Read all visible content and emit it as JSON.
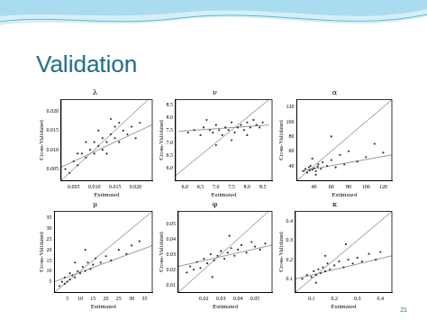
{
  "slide_title": "Validation",
  "page_number": "21",
  "chart_data": [
    {
      "type": "scatter",
      "title": "λ",
      "x_label": "Estimated",
      "y_label": "Cross-Validated",
      "grid": false,
      "xlim": [
        0.002,
        0.024
      ],
      "ylim": [
        0.002,
        0.023
      ],
      "xticks": [
        {
          "value": 0.005,
          "label": "0.005"
        },
        {
          "value": 0.01,
          "label": "0.010"
        },
        {
          "value": 0.015,
          "label": "0.015"
        },
        {
          "value": 0.02,
          "label": "0.020"
        }
      ],
      "yticks": [
        {
          "value": 0.005,
          "label": "0.005"
        },
        {
          "value": 0.01,
          "label": "0.010"
        },
        {
          "value": 0.015,
          "label": "0.015"
        },
        {
          "value": 0.02,
          "label": "0.020"
        }
      ],
      "series": [
        {
          "type": "scatter",
          "marker": "circle",
          "color": "#333333",
          "x": [
            0.003,
            0.004,
            0.005,
            0.006,
            0.007,
            0.008,
            0.009,
            0.01,
            0.01,
            0.011,
            0.012,
            0.012,
            0.013,
            0.014,
            0.015,
            0.015,
            0.016,
            0.017,
            0.018,
            0.019,
            0.02,
            0.021,
            0.008,
            0.011,
            0.006,
            0.014,
            0.016,
            0.013
          ],
          "values": [
            0.005,
            0.004,
            0.007,
            0.006,
            0.009,
            0.008,
            0.01,
            0.009,
            0.012,
            0.011,
            0.013,
            0.01,
            0.012,
            0.014,
            0.013,
            0.016,
            0.012,
            0.015,
            0.014,
            0.016,
            0.013,
            0.017,
            0.012,
            0.015,
            0.009,
            0.018,
            0.017,
            0.009
          ]
        },
        {
          "type": "line",
          "color": "#999999",
          "x": [
            0.002,
            0.023
          ],
          "values": [
            0.002,
            0.023
          ]
        },
        {
          "type": "line",
          "color": "#999999",
          "x": [
            0.002,
            0.024
          ],
          "values": [
            0.0055,
            0.0165
          ]
        }
      ]
    },
    {
      "type": "scatter",
      "title": "ν",
      "x_label": "Estimated",
      "y_label": "Cross-Validated",
      "grid": false,
      "xlim": [
        5.7,
        8.8
      ],
      "ylim": [
        5.5,
        8.7
      ],
      "xticks": [
        {
          "value": 6,
          "label": "6.0"
        },
        {
          "value": 6.5,
          "label": "6.5"
        },
        {
          "value": 7,
          "label": "7.0"
        },
        {
          "value": 7.5,
          "label": "7.5"
        },
        {
          "value": 8,
          "label": "8.0"
        },
        {
          "value": 8.5,
          "label": "8.5"
        }
      ],
      "yticks": [
        {
          "value": 6,
          "label": "6.0"
        },
        {
          "value": 6.5,
          "label": "6.5"
        },
        {
          "value": 7,
          "label": "7.0"
        },
        {
          "value": 7.5,
          "label": "7.5"
        },
        {
          "value": 8,
          "label": "8.0"
        },
        {
          "value": 8.5,
          "label": "8.5"
        }
      ],
      "series": [
        {
          "type": "scatter",
          "marker": "circle",
          "color": "#333333",
          "x": [
            6.1,
            6.3,
            6.5,
            6.6,
            6.8,
            6.9,
            7.0,
            7.1,
            7.2,
            7.3,
            7.4,
            7.5,
            7.6,
            7.7,
            7.8,
            7.9,
            8.0,
            8.1,
            8.2,
            8.3,
            8.4,
            8.5,
            7.0,
            7.5,
            8.0,
            6.7
          ],
          "values": [
            7.4,
            7.5,
            7.3,
            7.6,
            7.5,
            7.4,
            7.7,
            7.5,
            7.3,
            7.6,
            7.5,
            7.8,
            7.4,
            7.6,
            7.7,
            7.5,
            7.8,
            7.6,
            7.9,
            7.7,
            7.6,
            7.8,
            6.9,
            7.1,
            7.3,
            7.9
          ]
        },
        {
          "type": "line",
          "color": "#999999",
          "x": [
            5.7,
            8.7
          ],
          "values": [
            5.7,
            8.7
          ]
        },
        {
          "type": "line",
          "color": "#999999",
          "x": [
            5.8,
            8.7
          ],
          "values": [
            7.45,
            7.7
          ]
        }
      ]
    },
    {
      "type": "scatter",
      "title": "α",
      "x_label": "Estimated",
      "y_label": "Cross-Validated",
      "grid": false,
      "xlim": [
        20,
        130
      ],
      "ylim": [
        20,
        130
      ],
      "xticks": [
        40,
        60,
        80,
        100,
        120
      ],
      "yticks": [
        40,
        60,
        80,
        100,
        120
      ],
      "series": [
        {
          "type": "scatter",
          "marker": "circle",
          "color": "#333333",
          "x": [
            28,
            30,
            32,
            34,
            35,
            36,
            38,
            40,
            42,
            44,
            45,
            48,
            50,
            55,
            60,
            65,
            70,
            75,
            80,
            90,
            100,
            110,
            120,
            38,
            42,
            60
          ],
          "values": [
            33,
            36,
            31,
            38,
            34,
            40,
            35,
            37,
            33,
            39,
            42,
            36,
            45,
            40,
            48,
            38,
            55,
            42,
            60,
            46,
            52,
            70,
            58,
            50,
            28,
            80
          ]
        },
        {
          "type": "line",
          "color": "#999999",
          "x": [
            20,
            130
          ],
          "values": [
            20,
            130
          ]
        },
        {
          "type": "line",
          "color": "#999999",
          "x": [
            25,
            130
          ],
          "values": [
            33,
            55
          ]
        }
      ]
    },
    {
      "type": "scatter",
      "title": "μ",
      "x_label": "Estimated",
      "y_label": "Cross-Validated",
      "grid": false,
      "xlim": [
        0,
        38
      ],
      "ylim": [
        0,
        38
      ],
      "xticks": [
        5,
        10,
        15,
        20,
        25,
        30,
        35
      ],
      "yticks": [
        5,
        10,
        15,
        20,
        25,
        30,
        35
      ],
      "series": [
        {
          "type": "scatter",
          "marker": "circle",
          "color": "#333333",
          "x": [
            2,
            3,
            4,
            4,
            5,
            6,
            6,
            7,
            8,
            9,
            10,
            11,
            12,
            13,
            14,
            15,
            16,
            18,
            20,
            22,
            25,
            28,
            30,
            33,
            8,
            12
          ],
          "values": [
            3,
            5,
            4,
            7,
            5,
            6,
            9,
            8,
            7,
            10,
            9,
            12,
            10,
            14,
            11,
            13,
            16,
            14,
            17,
            15,
            20,
            18,
            22,
            24,
            14,
            20
          ]
        },
        {
          "type": "line",
          "color": "#999999",
          "x": [
            0,
            38
          ],
          "values": [
            0,
            38
          ]
        },
        {
          "type": "line",
          "color": "#999999",
          "x": [
            0,
            38
          ],
          "values": [
            5,
            22
          ]
        }
      ]
    },
    {
      "type": "scatter",
      "title": "φ",
      "x_label": "Estimated",
      "y_label": "Cross-Validated",
      "grid": false,
      "xlim": [
        0.005,
        0.06
      ],
      "ylim": [
        0.005,
        0.058
      ],
      "xticks": [
        0.02,
        0.03,
        0.04,
        0.05
      ],
      "yticks": [
        0.01,
        0.02,
        0.03,
        0.04,
        0.05
      ],
      "series": [
        {
          "type": "scatter",
          "marker": "circle",
          "color": "#333333",
          "x": [
            0.01,
            0.012,
            0.014,
            0.016,
            0.018,
            0.02,
            0.022,
            0.024,
            0.026,
            0.028,
            0.03,
            0.032,
            0.034,
            0.036,
            0.038,
            0.04,
            0.042,
            0.045,
            0.048,
            0.05,
            0.053,
            0.056,
            0.025,
            0.035
          ],
          "values": [
            0.018,
            0.022,
            0.02,
            0.025,
            0.021,
            0.027,
            0.024,
            0.03,
            0.026,
            0.029,
            0.032,
            0.027,
            0.031,
            0.034,
            0.029,
            0.033,
            0.036,
            0.031,
            0.038,
            0.035,
            0.033,
            0.037,
            0.015,
            0.042
          ]
        },
        {
          "type": "line",
          "color": "#999999",
          "x": [
            0.005,
            0.058
          ],
          "values": [
            0.005,
            0.058
          ]
        },
        {
          "type": "line",
          "color": "#999999",
          "x": [
            0.005,
            0.06
          ],
          "values": [
            0.022,
            0.036
          ]
        }
      ]
    },
    {
      "type": "scatter",
      "title": "κ",
      "x_label": "Estimated",
      "y_label": "Cross-Validated",
      "grid": false,
      "xlim": [
        0.03,
        0.45
      ],
      "ylim": [
        0.03,
        0.45
      ],
      "xticks": [
        0.1,
        0.2,
        0.3,
        0.4
      ],
      "yticks": [
        0.1,
        0.2,
        0.3,
        0.4
      ],
      "series": [
        {
          "type": "scatter",
          "marker": "circle",
          "color": "#333333",
          "x": [
            0.06,
            0.08,
            0.1,
            0.11,
            0.12,
            0.13,
            0.14,
            0.15,
            0.16,
            0.17,
            0.18,
            0.2,
            0.22,
            0.24,
            0.26,
            0.28,
            0.3,
            0.32,
            0.35,
            0.38,
            0.4,
            0.12,
            0.16,
            0.25
          ],
          "values": [
            0.1,
            0.12,
            0.11,
            0.14,
            0.12,
            0.15,
            0.13,
            0.16,
            0.14,
            0.18,
            0.15,
            0.17,
            0.19,
            0.16,
            0.2,
            0.18,
            0.21,
            0.19,
            0.23,
            0.2,
            0.24,
            0.08,
            0.22,
            0.28
          ]
        },
        {
          "type": "line",
          "color": "#999999",
          "x": [
            0.03,
            0.45
          ],
          "values": [
            0.03,
            0.45
          ]
        },
        {
          "type": "line",
          "color": "#999999",
          "x": [
            0.03,
            0.45
          ],
          "values": [
            0.1,
            0.22
          ]
        }
      ]
    }
  ]
}
